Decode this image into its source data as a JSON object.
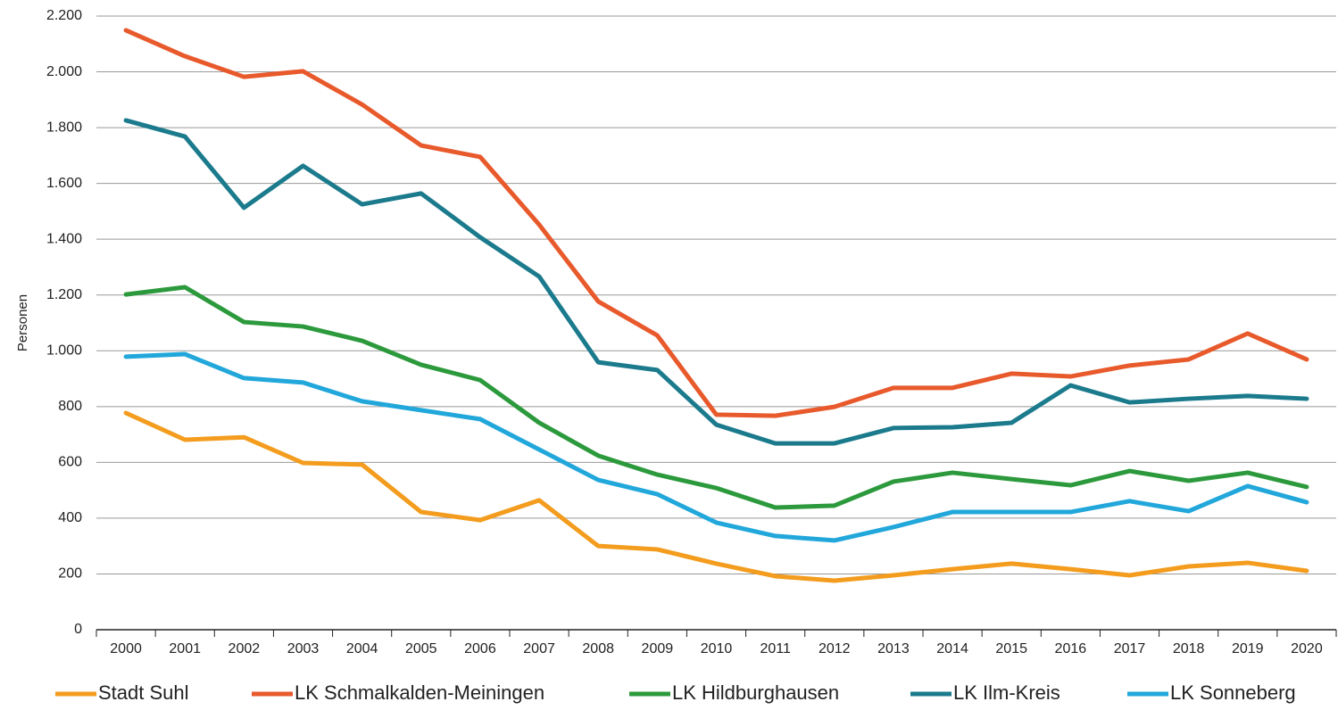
{
  "chart_data": {
    "type": "line",
    "y_label": "Personen",
    "categories": [
      "2000",
      "2001",
      "2002",
      "2003",
      "2004",
      "2005",
      "2006",
      "2007",
      "2008",
      "2009",
      "2010",
      "2011",
      "2012",
      "2013",
      "2014",
      "2015",
      "2016",
      "2017",
      "2018",
      "2019",
      "2020"
    ],
    "ylim": [
      0,
      2200
    ],
    "yticks": [
      0,
      200,
      400,
      600,
      800,
      {
        "value": 1000,
        "label": "1.000"
      },
      {
        "value": 1200,
        "label": "1.200"
      },
      {
        "value": 1400,
        "label": "1.400"
      },
      {
        "value": 1600,
        "label": "1.600"
      },
      {
        "value": 1800,
        "label": "1.800"
      },
      {
        "value": 2000,
        "label": "2.000"
      },
      {
        "value": 2200,
        "label": "2.200"
      }
    ],
    "grid": true,
    "legend": "bottom",
    "series": [
      {
        "name": "Stadt Suhl",
        "color": "#f39c1e",
        "values": [
          777,
          681,
          690,
          598,
          592,
          422,
          393,
          464,
          300,
          288,
          237,
          192,
          176,
          195,
          217,
          237,
          217,
          195,
          227,
          240,
          211
        ]
      },
      {
        "name": "LK Schmalkalden-Meiningen",
        "color": "#e8592b",
        "values": [
          2149,
          2056,
          1982,
          2002,
          1883,
          1736,
          1695,
          1452,
          1177,
          1055,
          771,
          767,
          799,
          867,
          867,
          918,
          908,
          947,
          969,
          1062,
          969
        ]
      },
      {
        "name": "LK Hildburghausen",
        "color": "#2c9a3c",
        "values": [
          1202,
          1228,
          1103,
          1087,
          1036,
          950,
          895,
          742,
          624,
          556,
          508,
          438,
          445,
          531,
          563,
          540,
          518,
          569,
          534,
          563,
          512
        ]
      },
      {
        "name": "LK Ilm-Kreis",
        "color": "#1b7b8d",
        "values": [
          1826,
          1768,
          1513,
          1663,
          1525,
          1564,
          1407,
          1266,
          959,
          931,
          735,
          668,
          668,
          723,
          726,
          742,
          876,
          815,
          828,
          838,
          828
        ]
      },
      {
        "name": "LK Sonneberg",
        "color": "#22a7db",
        "values": [
          979,
          988,
          902,
          886,
          819,
          787,
          755,
          646,
          537,
          486,
          384,
          336,
          320,
          368,
          422,
          422,
          422,
          461,
          425,
          515,
          457
        ]
      }
    ]
  }
}
